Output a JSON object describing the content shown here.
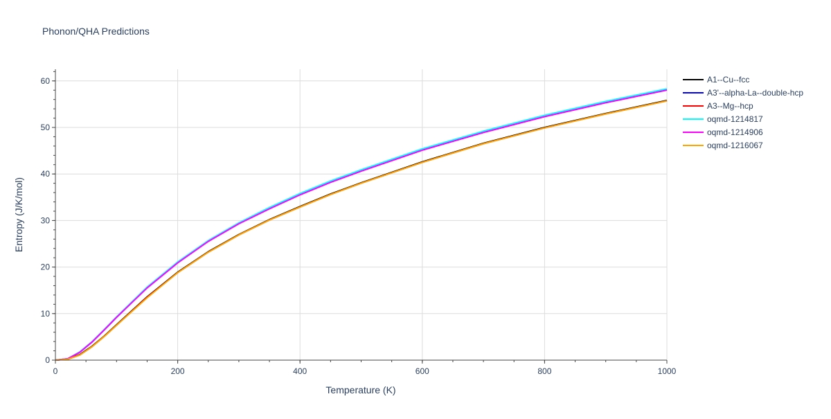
{
  "chart_data": {
    "type": "line",
    "title": "Phonon/QHA Predictions",
    "xlabel": "Temperature (K)",
    "ylabel": "Entropy (J/K/mol)",
    "xlim": [
      0,
      1000
    ],
    "ylim": [
      0,
      62.5
    ],
    "xticks": [
      0,
      200,
      400,
      600,
      800,
      1000
    ],
    "yticks": [
      0,
      10,
      20,
      30,
      40,
      50,
      60
    ],
    "grid": true,
    "legend_position": "right",
    "x": [
      0,
      20,
      40,
      60,
      80,
      100,
      150,
      200,
      250,
      300,
      350,
      400,
      450,
      500,
      600,
      700,
      800,
      900,
      1000
    ],
    "series": [
      {
        "name": "A1--Cu--fcc",
        "color": "#000000",
        "values": [
          0,
          0.2,
          1.2,
          3.0,
          5.2,
          7.6,
          13.6,
          18.9,
          23.3,
          27.0,
          30.2,
          33.0,
          35.7,
          38.1,
          42.6,
          46.6,
          50.0,
          53.0,
          55.8
        ]
      },
      {
        "name": "A3'--alpha-La--double-hcp",
        "color": "#0000ff",
        "values": [
          0,
          0.3,
          1.7,
          3.9,
          6.5,
          9.2,
          15.6,
          21.0,
          25.6,
          29.4,
          32.6,
          35.6,
          38.3,
          40.7,
          45.2,
          49.0,
          52.4,
          55.4,
          58.1
        ]
      },
      {
        "name": "A3--Mg--hcp",
        "color": "#ff0000",
        "values": [
          0,
          0.2,
          1.1,
          2.9,
          5.1,
          7.5,
          13.5,
          18.8,
          23.2,
          26.9,
          30.1,
          32.9,
          35.6,
          38.0,
          42.5,
          46.5,
          49.9,
          52.9,
          55.7
        ]
      },
      {
        "name": "oqmd-1214817",
        "color": "#00ffff",
        "values": [
          0,
          0.3,
          1.8,
          4.0,
          6.6,
          9.3,
          15.7,
          21.1,
          25.7,
          29.5,
          32.8,
          35.8,
          38.5,
          40.9,
          45.4,
          49.2,
          52.6,
          55.6,
          58.3
        ]
      },
      {
        "name": "oqmd-1214906",
        "color": "#ff00ff",
        "values": [
          0,
          0.3,
          1.7,
          3.9,
          6.5,
          9.2,
          15.5,
          20.9,
          25.5,
          29.3,
          32.5,
          35.5,
          38.2,
          40.6,
          45.1,
          48.9,
          52.3,
          55.3,
          58.0
        ]
      },
      {
        "name": "oqmd-1216067",
        "color": "#ffa500",
        "values": [
          0,
          0.2,
          1.1,
          2.9,
          5.1,
          7.5,
          13.4,
          18.8,
          23.2,
          26.9,
          30.1,
          32.9,
          35.6,
          38.0,
          42.5,
          46.5,
          49.9,
          52.9,
          55.7
        ]
      }
    ]
  }
}
